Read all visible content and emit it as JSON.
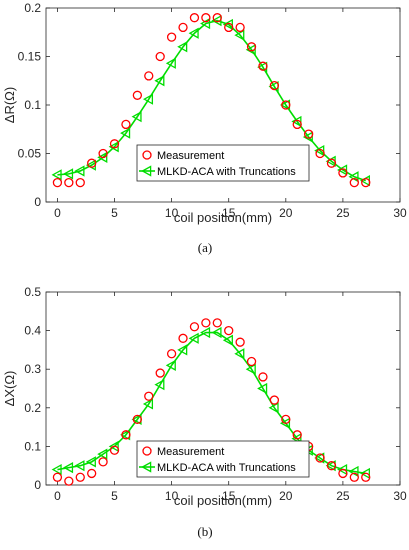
{
  "chart_data": [
    {
      "type": "scatter",
      "caption": "(a)",
      "xlabel": "coil position(mm)",
      "ylabel": "ΔR(Ω)",
      "xlim": [
        -1,
        30
      ],
      "ylim": [
        0,
        0.2
      ],
      "xticks": [
        "0",
        "5",
        "10",
        "15",
        "20",
        "25",
        "30"
      ],
      "yticks": [
        "0",
        "0.05",
        "0.1",
        "0.15",
        "0.2"
      ],
      "grid": false,
      "legend_position": "center-bottom",
      "series": [
        {
          "name": "Measurement",
          "marker": "circle",
          "color": "#ff0000",
          "x": [
            0,
            1,
            2,
            3,
            4,
            5,
            6,
            7,
            8,
            9,
            10,
            11,
            12,
            13,
            14,
            15,
            16,
            17,
            18,
            19,
            20,
            21,
            22,
            23,
            24,
            25,
            26,
            27
          ],
          "y": [
            0.02,
            0.02,
            0.02,
            0.04,
            0.05,
            0.06,
            0.08,
            0.11,
            0.13,
            0.15,
            0.17,
            0.18,
            0.19,
            0.19,
            0.19,
            0.18,
            0.18,
            0.16,
            0.14,
            0.12,
            0.1,
            0.08,
            0.07,
            0.05,
            0.04,
            0.03,
            0.02,
            0.02
          ]
        },
        {
          "name": "MLKD-ACA with Truncations",
          "marker": "triangle-left",
          "color": "#00dd00",
          "x": [
            0,
            1,
            2,
            3,
            4,
            5,
            6,
            7,
            8,
            9,
            10,
            11,
            12,
            13,
            14,
            15,
            16,
            17,
            18,
            19,
            20,
            21,
            22,
            23,
            24,
            25,
            26,
            27
          ],
          "y": [
            0.028,
            0.029,
            0.032,
            0.038,
            0.046,
            0.057,
            0.071,
            0.088,
            0.106,
            0.125,
            0.143,
            0.16,
            0.174,
            0.184,
            0.187,
            0.183,
            0.172,
            0.157,
            0.139,
            0.119,
            0.1,
            0.083,
            0.067,
            0.053,
            0.042,
            0.033,
            0.026,
            0.022
          ]
        }
      ]
    },
    {
      "type": "scatter",
      "caption": "(b)",
      "xlabel": "coil position(mm)",
      "ylabel": "ΔX(Ω)",
      "xlim": [
        -1,
        30
      ],
      "ylim": [
        0,
        0.5
      ],
      "xticks": [
        "0",
        "5",
        "10",
        "15",
        "20",
        "25",
        "30"
      ],
      "yticks": [
        "0",
        "0.1",
        "0.2",
        "0.3",
        "0.4",
        "0.5"
      ],
      "grid": false,
      "legend_position": "bottom",
      "series": [
        {
          "name": "Measurement",
          "marker": "circle",
          "color": "#ff0000",
          "x": [
            0,
            1,
            2,
            3,
            4,
            5,
            6,
            7,
            8,
            9,
            10,
            11,
            12,
            13,
            14,
            15,
            16,
            17,
            18,
            19,
            20,
            21,
            22,
            23,
            24,
            25,
            26,
            27
          ],
          "y": [
            0.02,
            0.01,
            0.02,
            0.03,
            0.06,
            0.09,
            0.13,
            0.17,
            0.23,
            0.29,
            0.34,
            0.38,
            0.41,
            0.42,
            0.42,
            0.4,
            0.37,
            0.32,
            0.28,
            0.22,
            0.17,
            0.13,
            0.1,
            0.07,
            0.05,
            0.03,
            0.02,
            0.02
          ]
        },
        {
          "name": "MLKD-ACA with Truncations",
          "marker": "triangle-left",
          "color": "#00dd00",
          "x": [
            0,
            1,
            2,
            3,
            4,
            5,
            6,
            7,
            8,
            9,
            10,
            11,
            12,
            13,
            14,
            15,
            16,
            17,
            18,
            19,
            20,
            21,
            22,
            23,
            24,
            25,
            26,
            27
          ],
          "y": [
            0.04,
            0.045,
            0.05,
            0.06,
            0.08,
            0.1,
            0.13,
            0.17,
            0.21,
            0.26,
            0.31,
            0.35,
            0.38,
            0.395,
            0.395,
            0.375,
            0.34,
            0.3,
            0.25,
            0.2,
            0.16,
            0.12,
            0.09,
            0.07,
            0.05,
            0.04,
            0.035,
            0.03
          ]
        }
      ]
    }
  ]
}
